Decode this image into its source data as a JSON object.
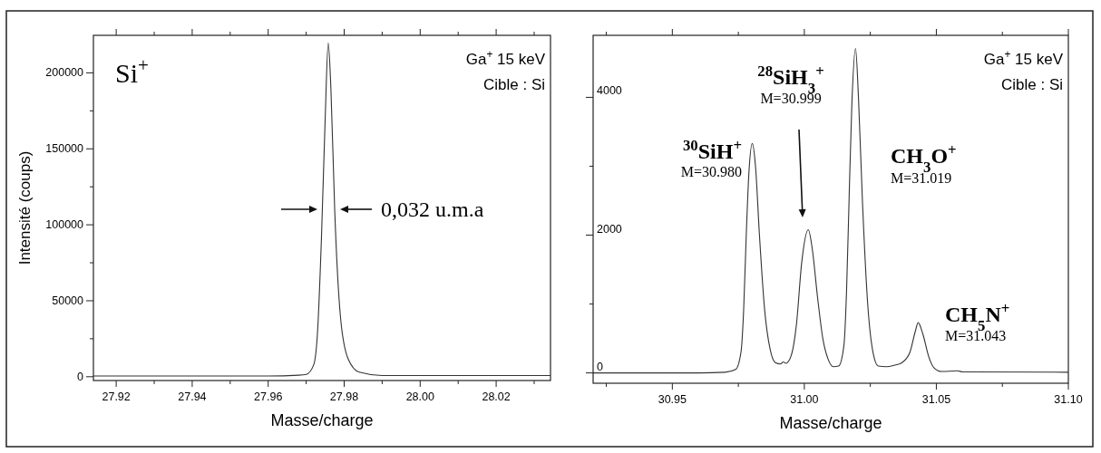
{
  "chart_data": [
    {
      "type": "line",
      "title": "Si$^{+}$",
      "xlabel": "Masse/charge",
      "ylabel": "Intensité (coups)",
      "series": [
        {
          "color": "#333333",
          "x": [
            27.914,
            27.96,
            27.968,
            27.97,
            27.972,
            27.973,
            27.974,
            27.975,
            27.9758,
            27.9765,
            27.9775,
            27.979,
            27.981,
            27.984,
            27.99,
            28.0343
          ],
          "values": [
            500,
            500,
            1000,
            1500,
            8000,
            30000,
            90000,
            170000,
            219700,
            190000,
            110000,
            40000,
            12000,
            3000,
            800,
            800
          ]
        }
      ],
      "xlim": [
        27.914,
        28.0343
      ],
      "ylim": [
        -2500,
        224700
      ],
      "xticks": [
        27.92,
        {
          "value": 27.93,
          "label": null
        },
        27.94,
        {
          "value": 27.95,
          "label": null
        },
        27.96,
        {
          "value": 27.97,
          "label": null
        },
        27.98,
        {
          "value": 27.99,
          "label": null
        },
        {
          "value": 28,
          "label": "28.00"
        },
        {
          "value": 28.01,
          "label": null
        },
        28.02,
        {
          "value": 28.03,
          "label": null
        }
      ],
      "yticks": [
        0,
        {
          "value": 25000,
          "label": null
        },
        50000,
        {
          "value": 75000,
          "label": null
        },
        100000,
        {
          "value": 125000,
          "label": null
        },
        150000,
        {
          "value": 175000,
          "label": null
        },
        200000
      ],
      "annotations": [
        "Ga$^{+}$ 15 keV",
        "Cible : Si",
        "0,032 u.m.a"
      ]
    },
    {
      "type": "line",
      "xlabel": "Masse/charge",
      "series": [
        {
          "color": "#333333",
          "x": [
            30.92,
            30.96,
            30.97,
            30.974,
            30.976,
            30.977,
            30.978,
            30.979,
            30.9803,
            30.9815,
            30.983,
            30.985,
            30.987,
            30.989,
            30.991,
            30.992,
            30.993,
            30.995,
            30.997,
            30.999,
            31.0015,
            31.003,
            31.005,
            31.007,
            31.009,
            31.011,
            31.013,
            31.015,
            31.016,
            31.017,
            31.018,
            31.0194,
            31.0205,
            31.022,
            31.024,
            31.026,
            31.028,
            31.031,
            31.034,
            31.037,
            31.04,
            31.042,
            31.0431,
            31.045,
            31.047,
            31.049,
            31.052,
            31.058,
            31.06,
            31.1
          ],
          "values": [
            0,
            0,
            10,
            50,
            300,
            900,
            2000,
            2900,
            3330,
            3000,
            2000,
            900,
            350,
            150,
            130,
            160,
            140,
            250,
            700,
            1600,
            2080,
            1800,
            1100,
            500,
            200,
            90,
            100,
            400,
            1200,
            2600,
            3900,
            4710,
            4000,
            2500,
            1000,
            300,
            100,
            90,
            110,
            150,
            300,
            600,
            730,
            550,
            250,
            80,
            20,
            30,
            15,
            10
          ]
        }
      ],
      "xlim": [
        30.92,
        31.1
      ],
      "ylim": [
        -150,
        4900
      ],
      "xticks": [
        {
          "value": 30.925,
          "label": null
        },
        30.95,
        {
          "value": 30.975,
          "label": null
        },
        {
          "value": 31,
          "label": "31.00"
        },
        {
          "value": 31.025,
          "label": null
        },
        31.05,
        {
          "value": 31.075,
          "label": null
        },
        {
          "value": 31.1,
          "label": "31.10"
        }
      ],
      "yticks": [
        0,
        {
          "value": 1000,
          "label": null
        },
        2000,
        {
          "value": 3000,
          "label": null
        },
        4000
      ],
      "annotations": [
        "Ga$^{+}$ 15 keV",
        "Cible : Si",
        "$^{30}$SiH$^{+}$",
        "M=30.980",
        "$^{28}$SiH$_{3}$$^{+}$",
        "M=30.999",
        "CH$_{3}$O$^{+}$",
        "M=31.019",
        "CH$_{5}$N$^{+}$",
        "M=31.043"
      ]
    }
  ]
}
